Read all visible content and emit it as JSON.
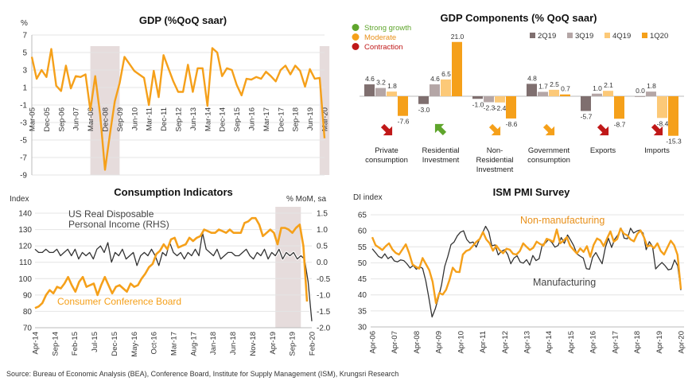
{
  "source": "Source: Bureau of Economic Analysis (BEA), Conference Board, Institute for Supply Management (ISM), Krungsri Research",
  "chart_data": [
    {
      "type": "line",
      "title": "GDP (%QoQ saar)",
      "ylabel": "%",
      "ylim": [
        -9,
        7
      ],
      "yticks": [
        -9,
        -7,
        -5,
        -3,
        -1,
        1,
        3,
        5,
        7
      ],
      "x_tick_labels": [
        "Mar-05",
        "Dec-05",
        "Sep-06",
        "Jun-07",
        "Mar-08",
        "Dec-08",
        "Sep-09",
        "Jun-10",
        "Mar-11",
        "Dec-11",
        "Sep-12",
        "Jun-13",
        "Mar-14",
        "Dec-14",
        "Sep-15",
        "Jun-16",
        "Mar-17",
        "Dec-17",
        "Sep-18",
        "Jun-19",
        "Mar-20"
      ],
      "recession_shading": [
        [
          12,
          18
        ],
        [
          59,
          61
        ]
      ],
      "colors": {
        "line": "#f5a01a",
        "shade": "#e6dcdc"
      },
      "series": [
        {
          "values": [
            4.5,
            2.0,
            3.0,
            2.2,
            5.4,
            1.2,
            0.6,
            3.5,
            0.9,
            2.3,
            2.2,
            2.5,
            -1.6,
            2.3,
            -2.1,
            -8.4,
            -4.4,
            -0.6,
            1.5,
            4.5,
            3.7,
            2.9,
            2.5,
            2.1,
            -1.0,
            2.9,
            -0.1,
            4.7,
            3.2,
            1.7,
            0.5,
            0.5,
            3.6,
            0.5,
            3.2,
            3.2,
            -1.1,
            5.5,
            5.0,
            2.3,
            3.2,
            3.0,
            1.3,
            0.1,
            2.0,
            1.9,
            2.2,
            2.0,
            2.8,
            2.3,
            1.7,
            3.0,
            3.5,
            2.5,
            3.5,
            2.9,
            1.1,
            3.1,
            2.0,
            2.1,
            -4.8
          ]
        }
      ]
    },
    {
      "type": "bar",
      "title": "GDP Components (% QoQ saar)",
      "ylim": [
        -16,
        22
      ],
      "categories": [
        [
          "Private",
          "consumption"
        ],
        [
          "Residential",
          "Investment"
        ],
        [
          "Non-",
          "Residential",
          "Investment"
        ],
        [
          "Government",
          "consumption"
        ],
        [
          "Exports"
        ],
        [
          "Imports"
        ]
      ],
      "series": [
        {
          "name": "2Q19",
          "color": "#7f6f6f",
          "values": [
            4.6,
            -3.0,
            -1.0,
            4.8,
            -5.7,
            0.0
          ]
        },
        {
          "name": "3Q19",
          "color": "#b4a6a6",
          "values": [
            3.2,
            4.6,
            -2.3,
            1.7,
            1.0,
            1.8
          ]
        },
        {
          "name": "4Q19",
          "color": "#fcc978",
          "values": [
            1.8,
            6.5,
            -2.4,
            2.5,
            2.1,
            -8.4
          ]
        },
        {
          "name": "1Q20",
          "color": "#f5a01a",
          "values": [
            -7.6,
            21.0,
            -8.6,
            0.7,
            -8.7,
            -15.3
          ]
        }
      ],
      "signal_legend": [
        {
          "label": "Strong growth",
          "color": "#5fa52c",
          "text_color": "#5fa52c"
        },
        {
          "label": "Moderate",
          "color": "#f5a01a",
          "text_color": "#e8901a"
        },
        {
          "label": "Contraction",
          "color": "#c01818",
          "text_color": "#c01818"
        }
      ],
      "signals": [
        "contraction",
        "strong",
        "moderate",
        "moderate",
        "contraction",
        "contraction"
      ]
    },
    {
      "type": "line",
      "title": "Consumption Indicators",
      "ylabel": "Index",
      "ylabel_right": "% MoM, sa",
      "ylim": [
        70,
        140
      ],
      "yticks": [
        70,
        80,
        90,
        100,
        110,
        120,
        130,
        140
      ],
      "ylim_right": [
        -2.0,
        1.5
      ],
      "yticks_right": [
        "-2.0",
        "-1.5",
        "-1.0",
        "-0.5",
        "0.0",
        "0.5",
        "1.0",
        "1.5"
      ],
      "x_tick_labels": [
        "Apr-14",
        "Sep-14",
        "Feb-15",
        "Jul-15",
        "Dec-15",
        "May-16",
        "Oct-16",
        "Mar-17",
        "Aug-17",
        "Jan-18",
        "Jun-18",
        "Nov-18",
        "Apr-19",
        "Sep-19",
        "Feb-20"
      ],
      "recession_shading": [
        [
          66,
          73
        ]
      ],
      "annotations": [
        {
          "text": [
            "US Real Disposable",
            "Personal Income (RHS)"
          ],
          "color": "#444444"
        },
        {
          "text": [
            "Consumer Conference Board"
          ],
          "color": "#f5a01a"
        }
      ],
      "series": [
        {
          "name": "Consumer Conference Board",
          "axis": "left",
          "color": "#f5a01a",
          "values": [
            82,
            83,
            85,
            90,
            93,
            91,
            95,
            94,
            97,
            101,
            96,
            92,
            98,
            101,
            95,
            96,
            97,
            90,
            96,
            101,
            96,
            91,
            95,
            96,
            94,
            92,
            97,
            95,
            96,
            100,
            103,
            107,
            109,
            115,
            117,
            121,
            118,
            124,
            125,
            119,
            120,
            121,
            125,
            123,
            125,
            126,
            130,
            129,
            128,
            128,
            130,
            129,
            128,
            130,
            128,
            128,
            128,
            134,
            135,
            137,
            137,
            133,
            126,
            128,
            130,
            128,
            121,
            131,
            131,
            130,
            128,
            131,
            133,
            120,
            86
          ]
        },
        {
          "name": "US Real Disposable Personal Income (RHS)",
          "axis": "right",
          "color": "#333333",
          "values": [
            0.4,
            0.3,
            0.3,
            0.4,
            0.3,
            0.3,
            0.4,
            0.2,
            0.3,
            0.4,
            0.2,
            0.4,
            0.1,
            0.3,
            0.2,
            0.3,
            0.1,
            0.4,
            0.5,
            0.3,
            0.6,
            0.0,
            0.3,
            0.2,
            0.4,
            0.1,
            0.2,
            0.3,
            -0.1,
            0.2,
            0.3,
            0.2,
            0.4,
            0.2,
            -0.1,
            0.3,
            0.2,
            0.6,
            0.3,
            0.2,
            0.3,
            0.1,
            0.3,
            0.2,
            0.4,
            0.2,
            0.9,
            0.4,
            0.3,
            0.2,
            0.4,
            0.1,
            0.2,
            0.3,
            0.3,
            0.2,
            0.2,
            0.3,
            0.4,
            0.2,
            0.1,
            0.3,
            0.2,
            0.4,
            0.1,
            0.3,
            0.2,
            0.4,
            0.1,
            0.3,
            0.2,
            0.3,
            0.1,
            0.2,
            0.1,
            -0.6,
            -1.8
          ]
        }
      ]
    },
    {
      "type": "line",
      "title": "ISM PMI Survey",
      "ylabel": "DI index",
      "ylim": [
        30,
        65
      ],
      "yticks": [
        30,
        35,
        40,
        45,
        50,
        55,
        60,
        65
      ],
      "x_tick_labels": [
        "Apr-06",
        "Apr-07",
        "Apr-08",
        "Apr-09",
        "Apr-10",
        "Apr-11",
        "Apr-12",
        "Apr-13",
        "Apr-14",
        "Apr-15",
        "Apr-16",
        "Apr-17",
        "Apr-18",
        "Apr-19",
        "Apr-20"
      ],
      "annotations": [
        {
          "text": [
            "Non-manufacturing"
          ],
          "color": "#e8901a"
        },
        {
          "text": [
            "Manufacturing"
          ],
          "color": "#444444"
        }
      ],
      "series": [
        {
          "name": "Non-manufacturing",
          "color": "#f5a01a",
          "values": [
            58.0,
            55.5,
            54.8,
            54.0,
            55.2,
            56.1,
            54.2,
            53.1,
            52.6,
            54.2,
            55.8,
            53.0,
            49.5,
            48.8,
            48.2,
            51.5,
            49.6,
            47.7,
            44.1,
            37.4,
            40.6,
            40.1,
            41.6,
            44.6,
            48.5,
            47.2,
            47.1,
            52.6,
            53.7,
            54.1,
            55.3,
            56.5,
            57.4,
            59.6,
            57.3,
            56.1,
            53.8,
            55.4,
            53.9,
            53.0,
            54.4,
            54.1,
            52.8,
            52.6,
            53.7,
            56.1,
            55.0,
            54.0,
            54.7,
            56.6,
            55.9,
            55.4,
            57.5,
            57.1,
            56.5,
            60.4,
            56.1,
            56.9,
            58.0,
            55.3,
            54.1,
            52.9,
            54.5,
            53.4,
            55.2,
            51.9,
            55.6,
            57.6,
            57.0,
            55.2,
            57.6,
            59.8,
            56.6,
            57.4,
            60.7,
            59.1,
            58.6,
            57.3,
            56.7,
            59.0,
            60.1,
            58.0,
            55.1,
            55.5,
            54.6,
            56.1,
            53.7,
            52.6,
            54.8,
            56.9,
            55.5,
            52.5,
            41.8
          ]
        },
        {
          "name": "Manufacturing",
          "color": "#333333",
          "values": [
            54.4,
            53.2,
            52.0,
            51.5,
            52.8,
            51.3,
            52.0,
            50.6,
            50.3,
            50.9,
            50.7,
            49.7,
            48.4,
            49.2,
            48.0,
            48.8,
            48.3,
            44.4,
            38.9,
            33.1,
            35.6,
            39.0,
            43.1,
            48.9,
            52.0,
            55.7,
            56.5,
            58.4,
            59.6,
            60.0,
            57.3,
            56.2,
            56.5,
            54.9,
            57.2,
            59.3,
            61.4,
            59.7,
            55.3,
            55.6,
            52.5,
            53.6,
            54.1,
            52.7,
            49.7,
            51.5,
            52.2,
            50.2,
            49.9,
            51.0,
            49.3,
            52.3,
            50.7,
            51.3,
            55.7,
            56.2,
            57.3,
            56.4,
            54.9,
            55.4,
            57.9,
            56.1,
            58.7,
            57.1,
            55.3,
            52.8,
            52.1,
            51.5,
            48.2,
            48.0,
            51.8,
            53.2,
            51.4,
            49.7,
            54.7,
            57.7,
            54.8,
            57.4,
            58.7,
            60.8,
            57.7,
            57.5,
            60.8,
            59.3,
            59.9,
            60.2,
            59.3,
            54.1,
            56.6,
            55.1,
            48.1,
            49.2,
            50.1,
            49.1,
            47.8,
            48.1,
            50.9,
            49.1,
            41.5
          ]
        }
      ]
    }
  ]
}
